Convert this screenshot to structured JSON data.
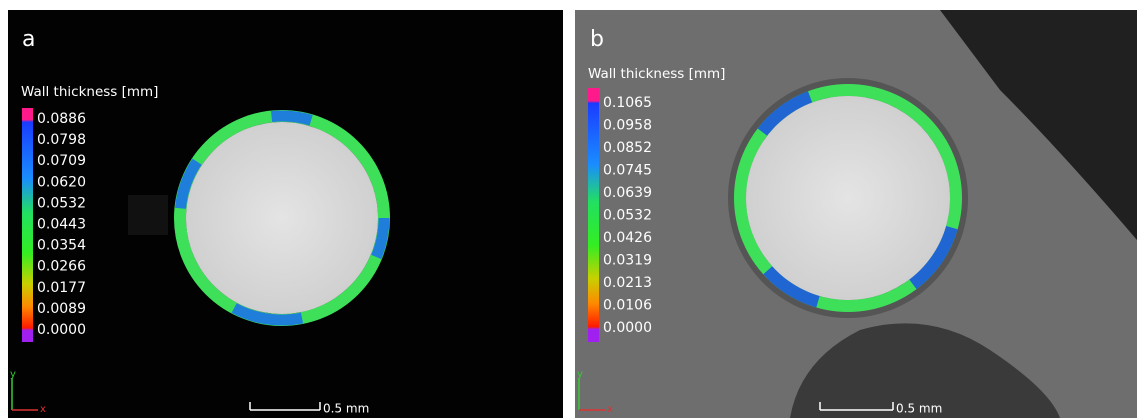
{
  "panels": [
    {
      "label": "a",
      "legend_title": "Wall thickness [mm]",
      "legend_labels": [
        "0.0886",
        "0.0798",
        "0.0709",
        "0.0620",
        "0.0532",
        "0.0443",
        "0.0354",
        "0.0266",
        "0.0177",
        "0.0089",
        "0.0000"
      ],
      "scale_bar": "0.5 mm",
      "axis_y": "y",
      "axis_x": "x"
    },
    {
      "label": "b",
      "legend_title": "Wall thickness [mm]",
      "legend_labels": [
        "0.1065",
        "0.0958",
        "0.0852",
        "0.0745",
        "0.0639",
        "0.0532",
        "0.0426",
        "0.0319",
        "0.0213",
        "0.0106",
        "0.0000"
      ],
      "scale_bar": "0.5 mm",
      "axis_y": "y",
      "axis_x": "x"
    }
  ]
}
